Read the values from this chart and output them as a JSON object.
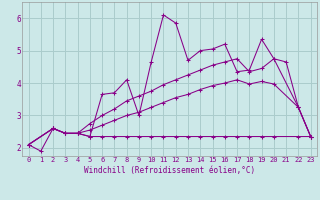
{
  "background_color": "#cce8e8",
  "grid_color": "#aacccc",
  "line_color": "#880088",
  "xlabel": "Windchill (Refroidissement éolien,°C)",
  "xlim": [
    -0.5,
    23.5
  ],
  "ylim": [
    1.75,
    6.5
  ],
  "yticks": [
    2,
    3,
    4,
    5,
    6
  ],
  "xticks": [
    0,
    1,
    2,
    3,
    4,
    5,
    6,
    7,
    8,
    9,
    10,
    11,
    12,
    13,
    14,
    15,
    16,
    17,
    18,
    19,
    20,
    21,
    22,
    23
  ],
  "series": [
    {
      "x": [
        0,
        1,
        2,
        3,
        4,
        5,
        6,
        7,
        8,
        9,
        10,
        11,
        12,
        13,
        14,
        15,
        16,
        17,
        18,
        19,
        20,
        21,
        22,
        23
      ],
      "y": [
        2.1,
        1.9,
        2.6,
        2.45,
        2.45,
        2.35,
        3.65,
        3.7,
        4.1,
        3.0,
        4.65,
        6.1,
        5.85,
        4.7,
        5.0,
        5.05,
        5.2,
        4.35,
        4.4,
        5.35,
        4.75,
        4.65,
        3.25,
        2.35
      ]
    },
    {
      "x": [
        0,
        2,
        3,
        4,
        5,
        6,
        7,
        8,
        9,
        10,
        11,
        12,
        13,
        14,
        15,
        16,
        17,
        18,
        19,
        20,
        22,
        23
      ],
      "y": [
        2.1,
        2.6,
        2.45,
        2.45,
        2.75,
        3.0,
        3.2,
        3.45,
        3.6,
        3.75,
        3.95,
        4.1,
        4.25,
        4.4,
        4.55,
        4.65,
        4.75,
        4.35,
        4.45,
        4.75,
        3.25,
        2.35
      ]
    },
    {
      "x": [
        0,
        2,
        3,
        4,
        5,
        6,
        7,
        8,
        9,
        10,
        11,
        12,
        13,
        14,
        15,
        16,
        17,
        18,
        19,
        20,
        22,
        23
      ],
      "y": [
        2.1,
        2.6,
        2.45,
        2.45,
        2.55,
        2.7,
        2.85,
        3.0,
        3.1,
        3.25,
        3.4,
        3.55,
        3.65,
        3.8,
        3.92,
        4.0,
        4.1,
        3.97,
        4.05,
        3.97,
        3.25,
        2.35
      ]
    },
    {
      "x": [
        0,
        2,
        3,
        4,
        5,
        6,
        7,
        8,
        9,
        10,
        11,
        12,
        13,
        14,
        15,
        16,
        17,
        18,
        19,
        20,
        22,
        23
      ],
      "y": [
        2.1,
        2.6,
        2.45,
        2.45,
        2.35,
        2.35,
        2.35,
        2.35,
        2.35,
        2.35,
        2.35,
        2.35,
        2.35,
        2.35,
        2.35,
        2.35,
        2.35,
        2.35,
        2.35,
        2.35,
        2.35,
        2.35
      ]
    }
  ]
}
